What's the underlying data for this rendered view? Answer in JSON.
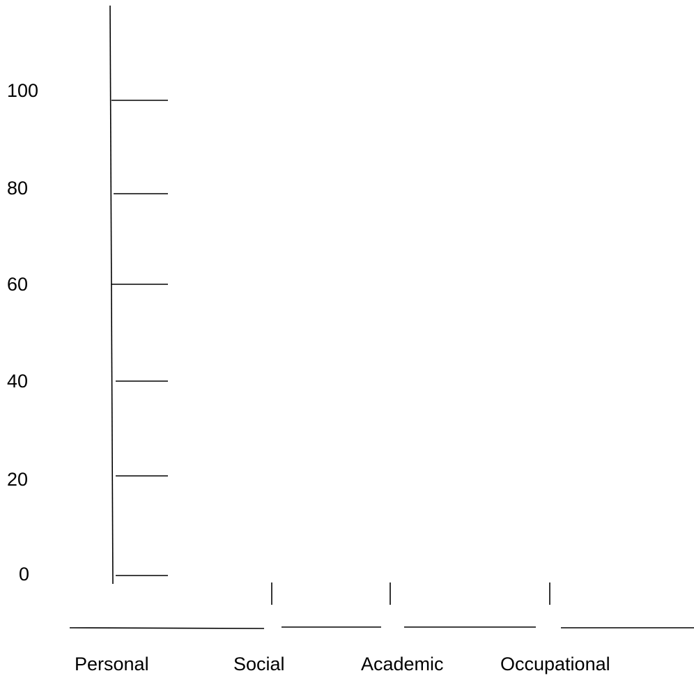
{
  "chart_data": {
    "type": "bar",
    "title": "",
    "xlabel": "",
    "ylabel": "",
    "categories": [
      "Personal",
      "Social",
      "Academic",
      "Occupational"
    ],
    "y_ticks": [
      "0",
      "20",
      "40",
      "60",
      "80",
      "100"
    ],
    "y_tick_values": [
      0,
      20,
      40,
      60,
      80,
      100
    ],
    "ylim": [
      0,
      100
    ],
    "series": [],
    "grid": false,
    "legend": "none",
    "line_color": "#000000"
  }
}
